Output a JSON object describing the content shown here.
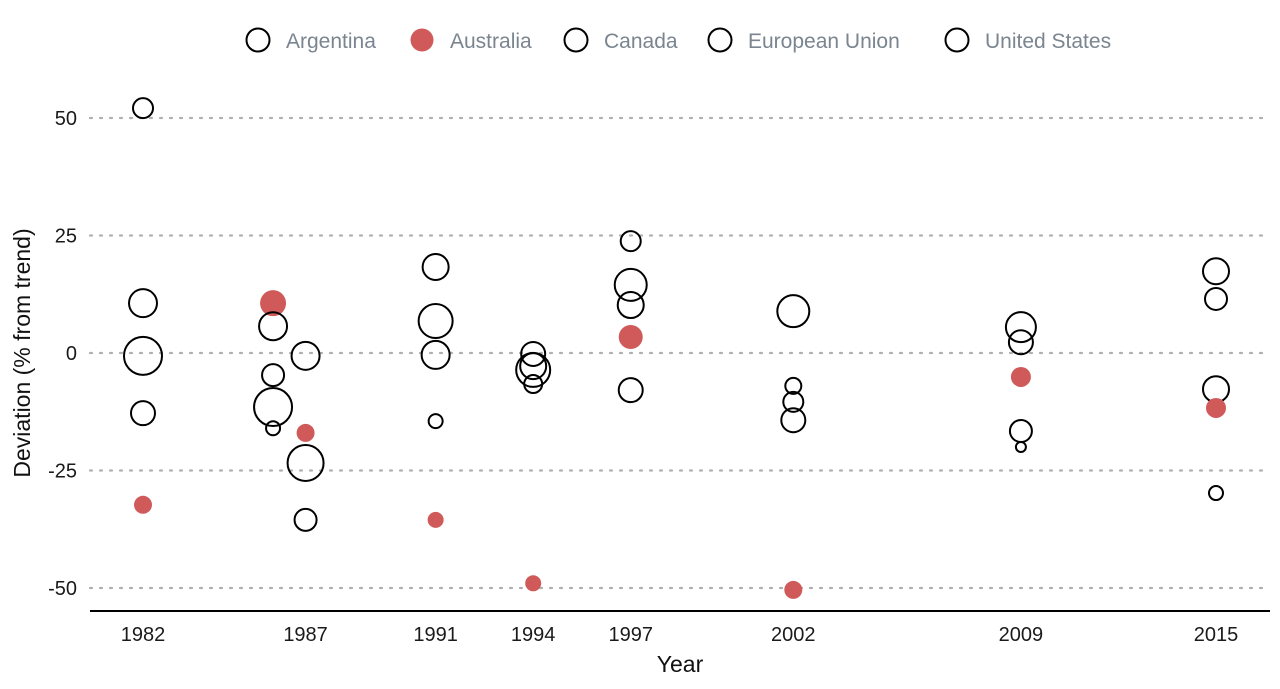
{
  "chart_data": {
    "type": "scatter",
    "title": "",
    "xlabel": "Year",
    "ylabel": "Deviation (% from trend)",
    "xlim": [
      1980.8,
      2016.6
    ],
    "ylim": [
      -55,
      60
    ],
    "x_ticks": [
      1982,
      1987,
      1991,
      1994,
      1997,
      2002,
      2009,
      2015
    ],
    "x_tick_labels": [
      "1982",
      "1987",
      "1991",
      "1994",
      "1997",
      "2002",
      "2009",
      "2015"
    ],
    "y_ticks": [
      50,
      25,
      0,
      -25,
      -50
    ],
    "y_tick_labels": [
      "50",
      "25",
      "0",
      "-25",
      "-50"
    ],
    "grid": "horizontal-dotted",
    "legend_position": "top-center",
    "size_encoding": "relative magnitude (unlabeled)",
    "colors": {
      "highlight": "#d05a5a",
      "outline": "#000000",
      "grid": "#b0b0b0",
      "legend_text": "#7a8590"
    },
    "legend": [
      {
        "name": "Argentina",
        "style": "outline"
      },
      {
        "name": "Australia",
        "style": "filled"
      },
      {
        "name": "Canada",
        "style": "outline"
      },
      {
        "name": "European Union",
        "style": "outline"
      },
      {
        "name": "United States",
        "style": "outline"
      }
    ],
    "points": [
      {
        "x": 1982,
        "y": 52.1,
        "size": 10,
        "filled": false
      },
      {
        "x": 1982,
        "y": 10.6,
        "size": 14,
        "filled": false
      },
      {
        "x": 1982,
        "y": -0.6,
        "size": 19,
        "filled": false
      },
      {
        "x": 1982,
        "y": -12.8,
        "size": 12,
        "filled": false
      },
      {
        "x": 1982,
        "y": -32.3,
        "size": 9,
        "filled": true
      },
      {
        "x": 1986,
        "y": 10.6,
        "size": 13,
        "filled": true
      },
      {
        "x": 1986,
        "y": 5.7,
        "size": 14,
        "filled": false
      },
      {
        "x": 1986,
        "y": -4.7,
        "size": 11,
        "filled": false
      },
      {
        "x": 1986,
        "y": -11.5,
        "size": 19,
        "filled": false
      },
      {
        "x": 1986,
        "y": -16.0,
        "size": 7,
        "filled": false
      },
      {
        "x": 1987,
        "y": -0.6,
        "size": 14,
        "filled": false
      },
      {
        "x": 1987,
        "y": -17.0,
        "size": 9,
        "filled": true
      },
      {
        "x": 1987,
        "y": -23.4,
        "size": 18,
        "filled": false
      },
      {
        "x": 1987,
        "y": -35.5,
        "size": 11,
        "filled": false
      },
      {
        "x": 1991,
        "y": 18.3,
        "size": 13,
        "filled": false
      },
      {
        "x": 1991,
        "y": 6.8,
        "size": 17,
        "filled": false
      },
      {
        "x": 1991,
        "y": -0.4,
        "size": 14,
        "filled": false
      },
      {
        "x": 1991,
        "y": -14.5,
        "size": 7,
        "filled": false
      },
      {
        "x": 1991,
        "y": -35.5,
        "size": 8,
        "filled": true
      },
      {
        "x": 1994,
        "y": -0.2,
        "size": 12,
        "filled": false
      },
      {
        "x": 1994,
        "y": -2.8,
        "size": 13,
        "filled": false
      },
      {
        "x": 1994,
        "y": -3.6,
        "size": 17,
        "filled": false
      },
      {
        "x": 1994,
        "y": -6.6,
        "size": 9,
        "filled": false
      },
      {
        "x": 1994,
        "y": -49.0,
        "size": 8,
        "filled": true
      },
      {
        "x": 1997,
        "y": 23.8,
        "size": 10,
        "filled": false
      },
      {
        "x": 1997,
        "y": 14.5,
        "size": 16,
        "filled": false
      },
      {
        "x": 1997,
        "y": 10.2,
        "size": 13,
        "filled": false
      },
      {
        "x": 1997,
        "y": 3.4,
        "size": 12,
        "filled": true
      },
      {
        "x": 1997,
        "y": -7.9,
        "size": 12,
        "filled": false
      },
      {
        "x": 2002,
        "y": 8.9,
        "size": 16,
        "filled": false
      },
      {
        "x": 2002,
        "y": -7.0,
        "size": 8,
        "filled": false
      },
      {
        "x": 2002,
        "y": -10.4,
        "size": 10,
        "filled": false
      },
      {
        "x": 2002,
        "y": -14.3,
        "size": 12,
        "filled": false
      },
      {
        "x": 2002,
        "y": -50.4,
        "size": 9,
        "filled": true
      },
      {
        "x": 2009,
        "y": 5.5,
        "size": 15,
        "filled": false
      },
      {
        "x": 2009,
        "y": 2.3,
        "size": 12,
        "filled": false
      },
      {
        "x": 2009,
        "y": -5.1,
        "size": 10,
        "filled": true
      },
      {
        "x": 2009,
        "y": -16.6,
        "size": 11,
        "filled": false
      },
      {
        "x": 2009,
        "y": -20.0,
        "size": 5,
        "filled": false
      },
      {
        "x": 2015,
        "y": 17.4,
        "size": 13,
        "filled": false
      },
      {
        "x": 2015,
        "y": 11.5,
        "size": 11,
        "filled": false
      },
      {
        "x": 2015,
        "y": -7.7,
        "size": 13,
        "filled": false
      },
      {
        "x": 2015,
        "y": -11.7,
        "size": 10,
        "filled": true
      },
      {
        "x": 2015,
        "y": -29.8,
        "size": 7,
        "filled": false
      }
    ]
  }
}
